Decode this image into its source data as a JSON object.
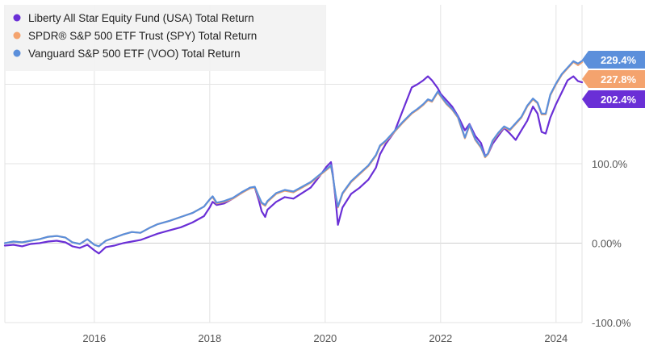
{
  "chart_data": {
    "type": "line",
    "xlim": [
      2014.45,
      2024.45
    ],
    "ylim": [
      -100,
      300
    ],
    "x_ticks": [
      {
        "value": 2016,
        "label": "2016"
      },
      {
        "value": 2018,
        "label": "2018"
      },
      {
        "value": 2020,
        "label": "2020"
      },
      {
        "value": 2022,
        "label": "2022"
      },
      {
        "value": 2024,
        "label": "2024"
      }
    ],
    "y_ticks": [
      {
        "value": -100,
        "label": "-100.0%"
      },
      {
        "value": 0,
        "label": "0.00%"
      },
      {
        "value": 100,
        "label": "100.0%"
      },
      {
        "value": 200,
        "label": ""
      }
    ],
    "grid": true,
    "legend_position": "top-left",
    "series": [
      {
        "name": "Liberty All Star Equity Fund (USA) Total Return",
        "color": "#6a2fd6",
        "end_label": "202.4%",
        "points": [
          [
            2014.45,
            -3
          ],
          [
            2014.6,
            -2
          ],
          [
            2014.75,
            -4
          ],
          [
            2014.9,
            -1
          ],
          [
            2015.05,
            0
          ],
          [
            2015.2,
            2
          ],
          [
            2015.35,
            3
          ],
          [
            2015.5,
            1
          ],
          [
            2015.62,
            -4
          ],
          [
            2015.75,
            -6
          ],
          [
            2015.88,
            -2
          ],
          [
            2016.0,
            -9
          ],
          [
            2016.08,
            -13
          ],
          [
            2016.2,
            -5
          ],
          [
            2016.35,
            -3
          ],
          [
            2016.5,
            0
          ],
          [
            2016.65,
            2
          ],
          [
            2016.8,
            4
          ],
          [
            2016.95,
            8
          ],
          [
            2017.1,
            12
          ],
          [
            2017.3,
            16
          ],
          [
            2017.5,
            20
          ],
          [
            2017.7,
            26
          ],
          [
            2017.9,
            34
          ],
          [
            2018.0,
            45
          ],
          [
            2018.05,
            52
          ],
          [
            2018.12,
            48
          ],
          [
            2018.25,
            50
          ],
          [
            2018.4,
            56
          ],
          [
            2018.55,
            63
          ],
          [
            2018.7,
            70
          ],
          [
            2018.78,
            70
          ],
          [
            2018.85,
            54
          ],
          [
            2018.9,
            40
          ],
          [
            2018.96,
            33
          ],
          [
            2019.0,
            42
          ],
          [
            2019.15,
            52
          ],
          [
            2019.3,
            58
          ],
          [
            2019.45,
            56
          ],
          [
            2019.6,
            63
          ],
          [
            2019.75,
            70
          ],
          [
            2019.9,
            84
          ],
          [
            2020.02,
            96
          ],
          [
            2020.1,
            102
          ],
          [
            2020.13,
            88
          ],
          [
            2020.18,
            55
          ],
          [
            2020.22,
            23
          ],
          [
            2020.3,
            45
          ],
          [
            2020.45,
            62
          ],
          [
            2020.6,
            70
          ],
          [
            2020.75,
            80
          ],
          [
            2020.88,
            95
          ],
          [
            2020.95,
            112
          ],
          [
            2021.05,
            125
          ],
          [
            2021.2,
            140
          ],
          [
            2021.35,
            168
          ],
          [
            2021.5,
            196
          ],
          [
            2021.6,
            200
          ],
          [
            2021.7,
            205
          ],
          [
            2021.78,
            210
          ],
          [
            2021.85,
            205
          ],
          [
            2021.95,
            195
          ],
          [
            2022.0,
            188
          ],
          [
            2022.1,
            180
          ],
          [
            2022.2,
            172
          ],
          [
            2022.3,
            160
          ],
          [
            2022.42,
            142
          ],
          [
            2022.5,
            150
          ],
          [
            2022.6,
            135
          ],
          [
            2022.7,
            126
          ],
          [
            2022.77,
            110
          ],
          [
            2022.82,
            112
          ],
          [
            2022.9,
            125
          ],
          [
            2023.0,
            135
          ],
          [
            2023.1,
            145
          ],
          [
            2023.2,
            138
          ],
          [
            2023.3,
            130
          ],
          [
            2023.4,
            142
          ],
          [
            2023.5,
            154
          ],
          [
            2023.6,
            172
          ],
          [
            2023.68,
            163
          ],
          [
            2023.75,
            140
          ],
          [
            2023.82,
            138
          ],
          [
            2023.9,
            158
          ],
          [
            2024.0,
            175
          ],
          [
            2024.1,
            190
          ],
          [
            2024.2,
            205
          ],
          [
            2024.3,
            210
          ],
          [
            2024.38,
            204
          ],
          [
            2024.45,
            202.4
          ]
        ]
      },
      {
        "name": "SPDR® S&P 500 ETF Trust (SPY) Total Return",
        "color": "#f4a36e",
        "end_label": "227.8%",
        "points": [
          [
            2014.45,
            0
          ],
          [
            2014.6,
            2
          ],
          [
            2014.75,
            1
          ],
          [
            2014.9,
            3
          ],
          [
            2015.05,
            5
          ],
          [
            2015.2,
            8
          ],
          [
            2015.35,
            9
          ],
          [
            2015.5,
            7
          ],
          [
            2015.62,
            1
          ],
          [
            2015.75,
            -1
          ],
          [
            2015.88,
            5
          ],
          [
            2016.0,
            -2
          ],
          [
            2016.08,
            -4
          ],
          [
            2016.2,
            3
          ],
          [
            2016.35,
            7
          ],
          [
            2016.5,
            11
          ],
          [
            2016.65,
            14
          ],
          [
            2016.8,
            13
          ],
          [
            2016.95,
            19
          ],
          [
            2017.1,
            24
          ],
          [
            2017.3,
            28
          ],
          [
            2017.5,
            33
          ],
          [
            2017.7,
            38
          ],
          [
            2017.9,
            46
          ],
          [
            2018.0,
            55
          ],
          [
            2018.05,
            58
          ],
          [
            2018.12,
            50
          ],
          [
            2018.25,
            52
          ],
          [
            2018.4,
            56
          ],
          [
            2018.55,
            63
          ],
          [
            2018.7,
            69
          ],
          [
            2018.78,
            70
          ],
          [
            2018.85,
            58
          ],
          [
            2018.9,
            50
          ],
          [
            2018.96,
            47
          ],
          [
            2019.0,
            52
          ],
          [
            2019.15,
            62
          ],
          [
            2019.3,
            66
          ],
          [
            2019.45,
            64
          ],
          [
            2019.6,
            70
          ],
          [
            2019.75,
            76
          ],
          [
            2019.9,
            85
          ],
          [
            2020.02,
            92
          ],
          [
            2020.1,
            97
          ],
          [
            2020.13,
            85
          ],
          [
            2020.18,
            60
          ],
          [
            2020.22,
            45
          ],
          [
            2020.3,
            62
          ],
          [
            2020.45,
            77
          ],
          [
            2020.6,
            87
          ],
          [
            2020.75,
            97
          ],
          [
            2020.88,
            110
          ],
          [
            2020.95,
            122
          ],
          [
            2021.05,
            128
          ],
          [
            2021.2,
            140
          ],
          [
            2021.35,
            152
          ],
          [
            2021.5,
            163
          ],
          [
            2021.6,
            168
          ],
          [
            2021.7,
            174
          ],
          [
            2021.78,
            180
          ],
          [
            2021.85,
            178
          ],
          [
            2021.95,
            190
          ],
          [
            2022.0,
            185
          ],
          [
            2022.1,
            175
          ],
          [
            2022.2,
            168
          ],
          [
            2022.3,
            158
          ],
          [
            2022.42,
            132
          ],
          [
            2022.5,
            148
          ],
          [
            2022.6,
            130
          ],
          [
            2022.7,
            120
          ],
          [
            2022.77,
            108
          ],
          [
            2022.82,
            112
          ],
          [
            2022.9,
            128
          ],
          [
            2023.0,
            138
          ],
          [
            2023.1,
            146
          ],
          [
            2023.2,
            142
          ],
          [
            2023.3,
            150
          ],
          [
            2023.4,
            158
          ],
          [
            2023.5,
            172
          ],
          [
            2023.6,
            181
          ],
          [
            2023.68,
            176
          ],
          [
            2023.75,
            162
          ],
          [
            2023.82,
            162
          ],
          [
            2023.9,
            186
          ],
          [
            2024.0,
            200
          ],
          [
            2024.1,
            212
          ],
          [
            2024.2,
            220
          ],
          [
            2024.3,
            228
          ],
          [
            2024.38,
            224
          ],
          [
            2024.45,
            227.8
          ]
        ]
      },
      {
        "name": "Vanguard S&P 500 ETF (VOO) Total Return",
        "color": "#5b8fdb",
        "end_label": "229.4%",
        "points": [
          [
            2014.45,
            0
          ],
          [
            2014.6,
            2
          ],
          [
            2014.75,
            1
          ],
          [
            2014.9,
            3
          ],
          [
            2015.05,
            5
          ],
          [
            2015.2,
            8
          ],
          [
            2015.35,
            9
          ],
          [
            2015.5,
            7
          ],
          [
            2015.62,
            1
          ],
          [
            2015.75,
            -1
          ],
          [
            2015.88,
            5
          ],
          [
            2016.0,
            -2
          ],
          [
            2016.08,
            -4
          ],
          [
            2016.2,
            3
          ],
          [
            2016.35,
            7
          ],
          [
            2016.5,
            11
          ],
          [
            2016.65,
            14
          ],
          [
            2016.8,
            13
          ],
          [
            2016.95,
            19
          ],
          [
            2017.1,
            24
          ],
          [
            2017.3,
            28
          ],
          [
            2017.5,
            33
          ],
          [
            2017.7,
            38
          ],
          [
            2017.9,
            46
          ],
          [
            2018.0,
            55
          ],
          [
            2018.05,
            59
          ],
          [
            2018.12,
            51
          ],
          [
            2018.25,
            53
          ],
          [
            2018.4,
            57
          ],
          [
            2018.55,
            64
          ],
          [
            2018.7,
            70
          ],
          [
            2018.78,
            71
          ],
          [
            2018.85,
            59
          ],
          [
            2018.9,
            51
          ],
          [
            2018.96,
            48
          ],
          [
            2019.0,
            53
          ],
          [
            2019.15,
            63
          ],
          [
            2019.3,
            67
          ],
          [
            2019.45,
            65
          ],
          [
            2019.6,
            71
          ],
          [
            2019.75,
            77
          ],
          [
            2019.9,
            86
          ],
          [
            2020.02,
            93
          ],
          [
            2020.1,
            98
          ],
          [
            2020.13,
            86
          ],
          [
            2020.18,
            61
          ],
          [
            2020.22,
            46
          ],
          [
            2020.3,
            63
          ],
          [
            2020.45,
            78
          ],
          [
            2020.6,
            88
          ],
          [
            2020.75,
            98
          ],
          [
            2020.88,
            111
          ],
          [
            2020.95,
            123
          ],
          [
            2021.05,
            129
          ],
          [
            2021.2,
            141
          ],
          [
            2021.35,
            153
          ],
          [
            2021.5,
            164
          ],
          [
            2021.6,
            169
          ],
          [
            2021.7,
            175
          ],
          [
            2021.78,
            181
          ],
          [
            2021.85,
            179
          ],
          [
            2021.95,
            191
          ],
          [
            2022.0,
            186
          ],
          [
            2022.1,
            176
          ],
          [
            2022.2,
            169
          ],
          [
            2022.3,
            159
          ],
          [
            2022.42,
            133
          ],
          [
            2022.5,
            149
          ],
          [
            2022.6,
            131
          ],
          [
            2022.7,
            121
          ],
          [
            2022.77,
            109
          ],
          [
            2022.82,
            113
          ],
          [
            2022.9,
            129
          ],
          [
            2023.0,
            139
          ],
          [
            2023.1,
            147
          ],
          [
            2023.2,
            143
          ],
          [
            2023.3,
            151
          ],
          [
            2023.4,
            159
          ],
          [
            2023.5,
            173
          ],
          [
            2023.6,
            182
          ],
          [
            2023.68,
            177
          ],
          [
            2023.75,
            163
          ],
          [
            2023.82,
            163
          ],
          [
            2023.9,
            187
          ],
          [
            2024.0,
            201
          ],
          [
            2024.1,
            213
          ],
          [
            2024.2,
            221
          ],
          [
            2024.3,
            229
          ],
          [
            2024.38,
            226
          ],
          [
            2024.45,
            229.4
          ]
        ]
      }
    ]
  }
}
